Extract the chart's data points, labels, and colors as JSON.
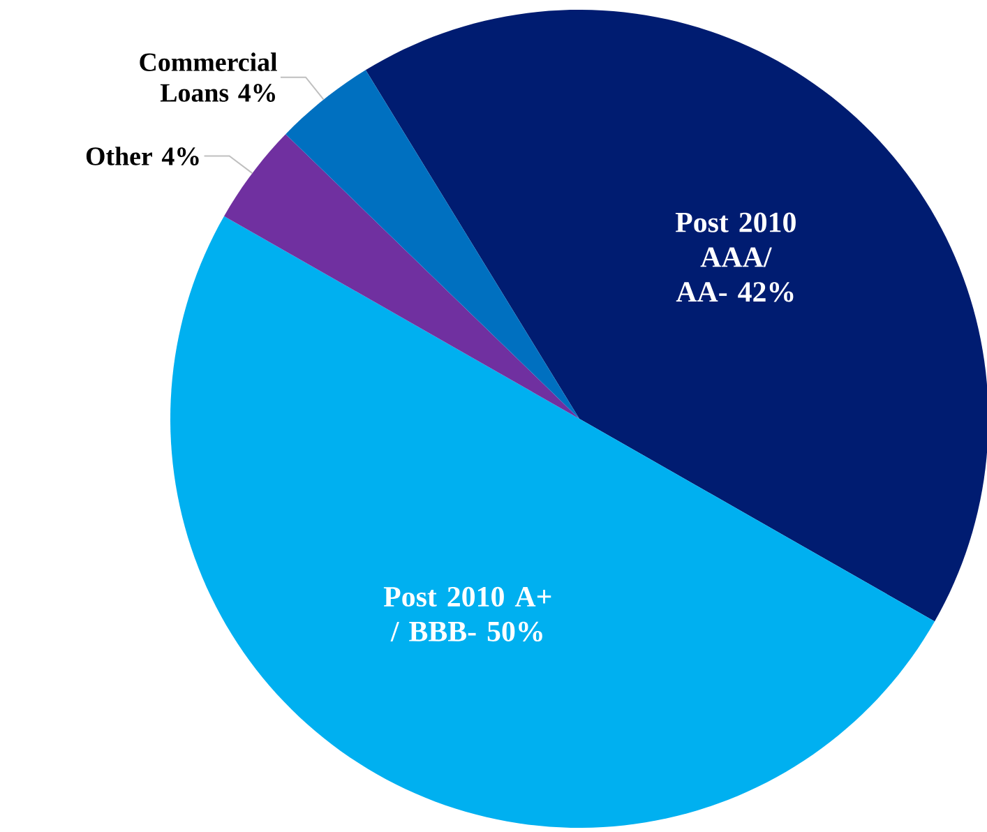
{
  "chart_data": {
    "type": "pie",
    "categories": [
      "Post 2010 AAA/ AA-",
      "Post 2010 A+ / BBB-",
      "Other",
      "Commercial Loans"
    ],
    "values": [
      42,
      50,
      4,
      4
    ],
    "value_labels": [
      "42%",
      "50%",
      "4%",
      "4%"
    ],
    "colors": [
      "#001c71",
      "#00b0f0",
      "#7030a0",
      "#0070c0"
    ]
  }
}
